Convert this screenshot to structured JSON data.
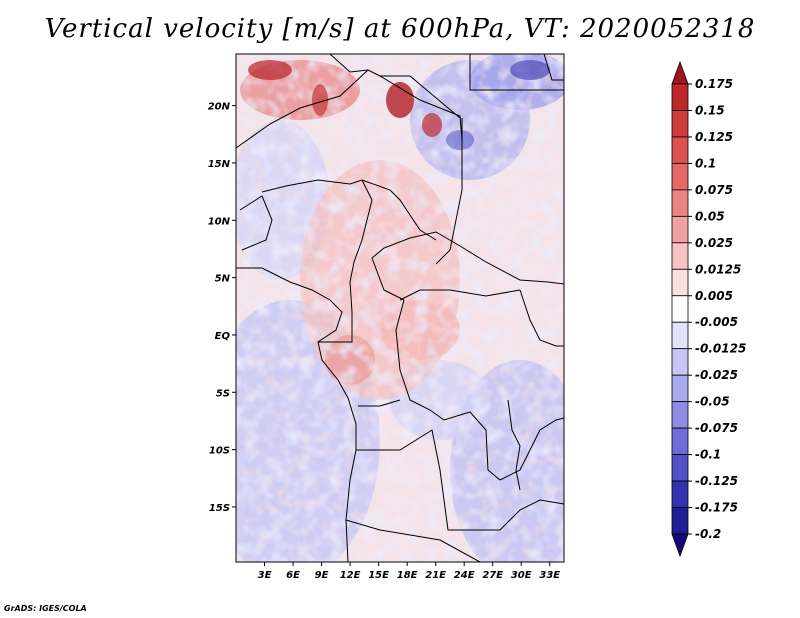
{
  "title": "Vertical velocity [m/s] at 600hPa, VT: 2020052318",
  "footer": "GrADS: IGES/COLA",
  "map": {
    "lat_labels": [
      "20N",
      "15N",
      "10N",
      "5N",
      "EQ",
      "5S",
      "10S",
      "15S"
    ],
    "lat_values": [
      20,
      15,
      10,
      5,
      0,
      -5,
      -10,
      -15
    ],
    "lon_labels": [
      "3E",
      "6E",
      "9E",
      "12E",
      "15E",
      "18E",
      "21E",
      "24E",
      "27E",
      "30E",
      "33E"
    ],
    "lon_values": [
      3,
      6,
      9,
      12,
      15,
      18,
      21,
      24,
      27,
      30,
      33
    ],
    "lat_range": [
      -19.8,
      24.5
    ],
    "lon_range": [
      0,
      34.5
    ]
  },
  "colorbar": {
    "labels": [
      "0.175",
      "0.15",
      "0.125",
      "0.1",
      "0.075",
      "0.05",
      "0.025",
      "0.0125",
      "0.005",
      "-0.005",
      "-0.0125",
      "-0.025",
      "-0.05",
      "-0.075",
      "-0.1",
      "-0.125",
      "-0.175",
      "-0.2"
    ],
    "colors": [
      "#a5141e",
      "#be2a2c",
      "#d03c3c",
      "#dc5050",
      "#e46868",
      "#ec8484",
      "#f2a2a2",
      "#f7c2c2",
      "#fbe0e0",
      "#ffffff",
      "#e2e2fb",
      "#c8c8f7",
      "#aaaaf0",
      "#8c8ce6",
      "#6e6ed9",
      "#5050c8",
      "#3232b2",
      "#1e1e96",
      "#140a78"
    ]
  }
}
